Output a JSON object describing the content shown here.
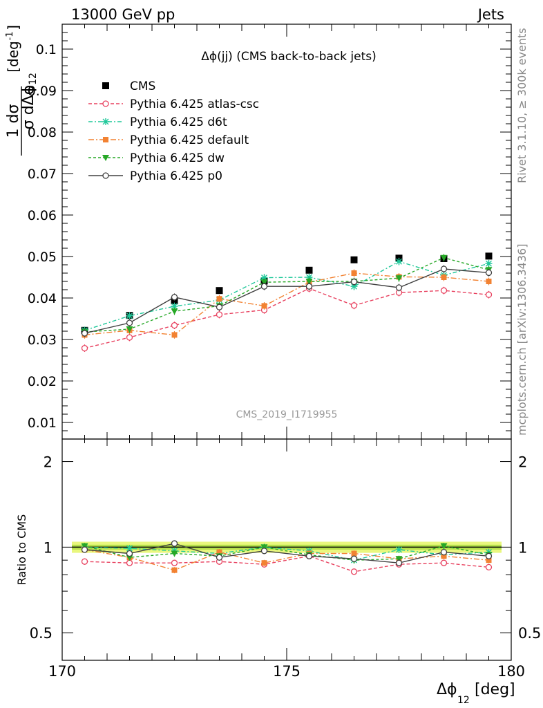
{
  "header": {
    "left": "13000 GeV pp",
    "right": "Jets"
  },
  "side_labels": {
    "rivet": "Rivet 3.1.10, ≥ 300k events",
    "mcplots": "mcplots.cern.ch [arXiv:1306.3436]"
  },
  "watermark": "CMS_2019_I1719955",
  "colors": {
    "cms": "#000000",
    "atlas_csc": "#e8415f",
    "d6t": "#1fc89a",
    "default": "#f28232",
    "dw": "#27a827",
    "p0": "#404040",
    "band_outer": "#e9f77e",
    "band_inner": "#b5e04c"
  },
  "chart_data": [
    {
      "type": "line",
      "title": "Δϕ(jj) (CMS back-to-back jets)",
      "ylabel_main": "1 dσ",
      "ylabel_denom": "σ dΔϕ",
      "ylabel_sub": "12",
      "ylabel_unit": "[deg",
      "ylabel_exp": "-1",
      "ylabel_close": "]",
      "xlim": [
        170,
        180
      ],
      "ylim": [
        0.006,
        0.106
      ],
      "yticks": [
        0.01,
        0.02,
        0.03,
        0.04,
        0.05,
        0.06,
        0.07,
        0.08,
        0.09,
        0.1
      ],
      "ytick_labels": [
        "0.01",
        "0.02",
        "0.03",
        "0.04",
        "0.05",
        "0.06",
        "0.07",
        "0.08",
        "0.09",
        "0.1"
      ],
      "x": [
        170.5,
        171.5,
        172.5,
        173.5,
        174.5,
        175.5,
        176.5,
        177.5,
        178.5,
        179.5
      ],
      "series": [
        {
          "key": "cms",
          "name": "CMS",
          "marker": "square",
          "dash": "none",
          "values": [
            0.0322,
            0.0358,
            0.0393,
            0.0418,
            0.0441,
            0.0467,
            0.0492,
            0.0496,
            0.0495,
            0.0501
          ]
        },
        {
          "key": "atlas_csc",
          "name": "Pythia 6.425 atlas-csc",
          "marker": "circle-open",
          "dash": "5,3",
          "values": [
            0.0279,
            0.0305,
            0.0334,
            0.036,
            0.0371,
            0.0423,
            0.0382,
            0.0413,
            0.0418,
            0.0408
          ]
        },
        {
          "key": "d6t",
          "name": "Pythia 6.425 d6t",
          "marker": "star",
          "dash": "6,3,2,3",
          "values": [
            0.0322,
            0.0357,
            0.038,
            0.0395,
            0.0449,
            0.045,
            0.0428,
            0.0488,
            0.0455,
            0.0483
          ]
        },
        {
          "key": "default",
          "name": "Pythia 6.425 default",
          "marker": "square-small",
          "dash": "8,3,2,3",
          "values": [
            0.0311,
            0.0322,
            0.0311,
            0.0398,
            0.0381,
            0.0438,
            0.046,
            0.0451,
            0.045,
            0.044
          ]
        },
        {
          "key": "dw",
          "name": "Pythia 6.425 dw",
          "marker": "triangle-down",
          "dash": "4,3",
          "values": [
            0.0318,
            0.0325,
            0.0368,
            0.0381,
            0.0438,
            0.044,
            0.044,
            0.0448,
            0.0497,
            0.0468
          ]
        },
        {
          "key": "p0",
          "name": "Pythia 6.425 p0",
          "marker": "circle-open",
          "dash": "none",
          "values": [
            0.0315,
            0.034,
            0.0402,
            0.0378,
            0.0428,
            0.0428,
            0.0439,
            0.0425,
            0.047,
            0.0461
          ]
        }
      ]
    },
    {
      "type": "line",
      "ylabel": "Ratio to CMS",
      "xlabel_main": "Δϕ",
      "xlabel_sub": "12",
      "xlabel_unit": "[deg]",
      "xlim": [
        170,
        180
      ],
      "ylim": [
        0.4,
        2.4
      ],
      "log_y": true,
      "yticks": [
        0.5,
        1,
        2
      ],
      "ytick_labels": [
        "0.5",
        "1",
        "2"
      ],
      "xticks": [
        170,
        175,
        180
      ],
      "xtick_labels": [
        "170",
        "175",
        "180"
      ],
      "band_inner": [
        0.98,
        1.02
      ],
      "band_outer": [
        0.955,
        1.045
      ],
      "x": [
        170.5,
        171.5,
        172.5,
        173.5,
        174.5,
        175.5,
        176.5,
        177.5,
        178.5,
        179.5
      ],
      "series": [
        {
          "key": "atlas_csc",
          "name": "Pythia 6.425 atlas-csc",
          "values": [
            0.89,
            0.88,
            0.88,
            0.89,
            0.87,
            0.93,
            0.82,
            0.87,
            0.88,
            0.85
          ]
        },
        {
          "key": "d6t",
          "name": "Pythia 6.425 d6t",
          "values": [
            1.0,
            0.99,
            0.97,
            0.95,
            1.0,
            0.97,
            0.9,
            0.98,
            0.94,
            0.96
          ]
        },
        {
          "key": "default",
          "name": "Pythia 6.425 default",
          "values": [
            0.98,
            0.92,
            0.83,
            0.96,
            0.88,
            0.95,
            0.95,
            0.91,
            0.93,
            0.9
          ]
        },
        {
          "key": "dw",
          "name": "Pythia 6.425 dw",
          "values": [
            1.01,
            0.92,
            0.95,
            0.93,
            1.0,
            0.94,
            0.9,
            0.91,
            1.01,
            0.94
          ]
        },
        {
          "key": "p0",
          "name": "Pythia 6.425 p0",
          "values": [
            0.98,
            0.95,
            1.03,
            0.92,
            0.97,
            0.93,
            0.91,
            0.88,
            0.96,
            0.93
          ]
        }
      ]
    }
  ]
}
